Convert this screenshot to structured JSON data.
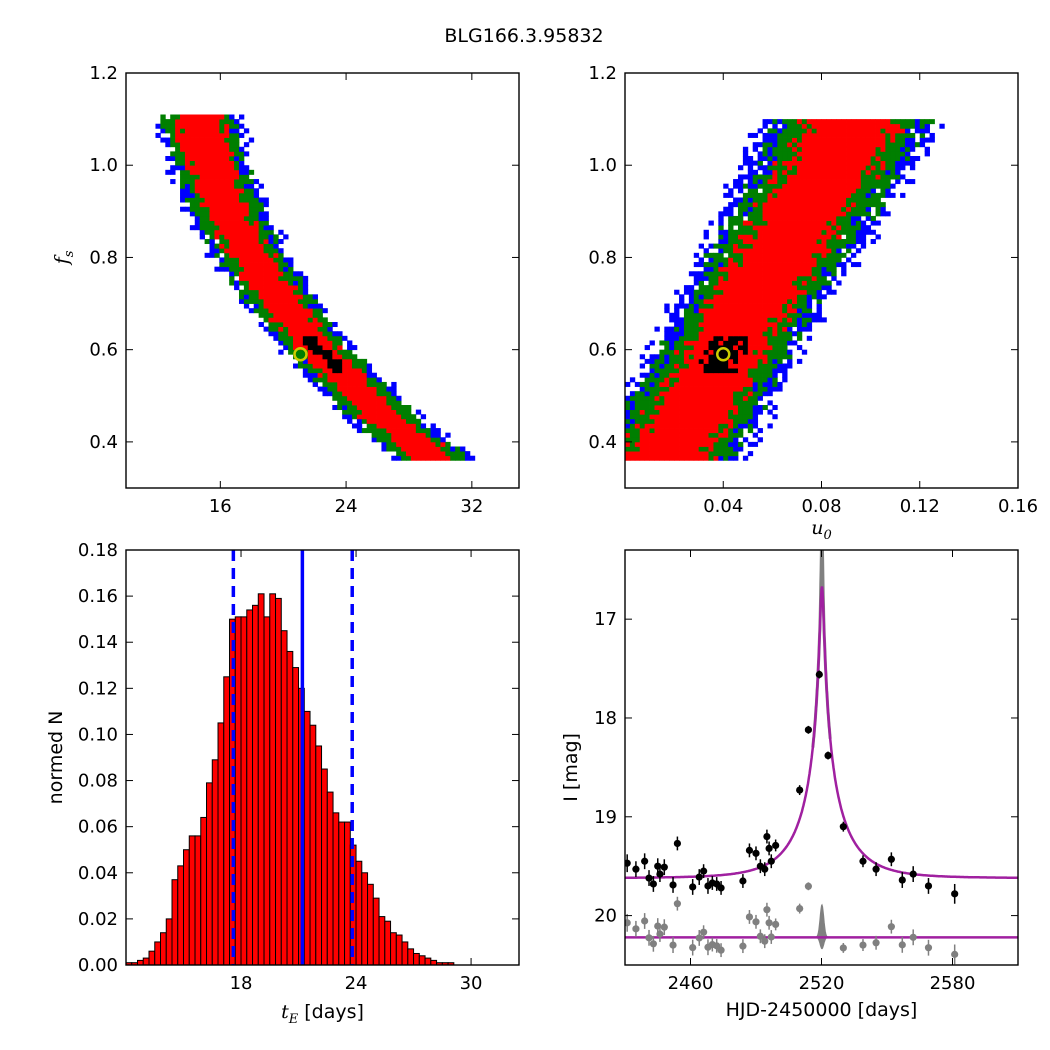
{
  "figure": {
    "title": "BLG166.3.95832"
  },
  "colors": {
    "blue": "#0000ff",
    "green": "#007f00",
    "red": "#ff0000",
    "black": "#000000",
    "best_fit_marker": "#cccc00",
    "hist_fill": "#ff0000",
    "model": "#a020a0",
    "residual": "#808080"
  },
  "chart_data": [
    {
      "type": "heatmap",
      "name": "tE-fs",
      "xlabel": "",
      "ylabel": "f_s",
      "ylabel_main": "f",
      "ylabel_sub": "s",
      "xlim": [
        10,
        35
      ],
      "ylim": [
        0.3,
        1.2
      ],
      "xticks": [
        16,
        24,
        32
      ],
      "xtick_labels": [
        "16",
        "24",
        "32"
      ],
      "yticks": [
        0.4,
        0.6,
        0.8,
        1.0,
        1.2
      ],
      "ytick_labels": [
        "0.4",
        "0.6",
        "0.8",
        "1.0",
        "1.2"
      ],
      "contour_levels": [
        "blue",
        "green",
        "red",
        "black"
      ],
      "best_fit": {
        "x": 21.1,
        "y": 0.59
      }
    },
    {
      "type": "heatmap",
      "name": "u0-fs",
      "xlabel": "u_0",
      "xlabel_main": "u",
      "xlabel_sub": "0",
      "ylabel": "",
      "xlim": [
        0,
        0.16
      ],
      "ylim": [
        0.3,
        1.2
      ],
      "xticks": [
        0.04,
        0.08,
        0.12,
        0.16
      ],
      "xtick_labels": [
        "0.04",
        "0.08",
        "0.12",
        "0.16"
      ],
      "yticks": [
        0.4,
        0.6,
        0.8,
        1.0,
        1.2
      ],
      "ytick_labels": [
        "0.4",
        "0.6",
        "0.8",
        "1.0",
        "1.2"
      ],
      "contour_levels": [
        "blue",
        "green",
        "red",
        "black"
      ],
      "best_fit": {
        "x": 0.04,
        "y": 0.59
      }
    },
    {
      "type": "bar",
      "name": "tE-histogram",
      "xlabel": "t_E  [days]",
      "xlabel_main": "t",
      "xlabel_sub": "E",
      "xlabel_unit": " [days]",
      "ylabel": "normed N",
      "xlim": [
        12,
        32.5
      ],
      "ylim": [
        0,
        0.18
      ],
      "xticks": [
        18,
        24,
        30
      ],
      "xtick_labels": [
        "18",
        "24",
        "30"
      ],
      "yticks": [
        0.0,
        0.02,
        0.04,
        0.06,
        0.08,
        0.1,
        0.12,
        0.14,
        0.16,
        0.18
      ],
      "ytick_labels": [
        "0.00",
        "0.02",
        "0.04",
        "0.06",
        "0.08",
        "0.10",
        "0.12",
        "0.14",
        "0.16",
        "0.18"
      ],
      "bin_start": 12.0,
      "bin_width": 0.3,
      "values": [
        0.001,
        0.001,
        0.002,
        0.003,
        0.006,
        0.01,
        0.014,
        0.02,
        0.037,
        0.043,
        0.05,
        0.056,
        0.056,
        0.064,
        0.079,
        0.089,
        0.105,
        0.125,
        0.15,
        0.151,
        0.151,
        0.154,
        0.156,
        0.161,
        0.151,
        0.161,
        0.159,
        0.145,
        0.136,
        0.129,
        0.12,
        0.11,
        0.104,
        0.095,
        0.085,
        0.075,
        0.066,
        0.062,
        0.062,
        0.052,
        0.045,
        0.04,
        0.035,
        0.029,
        0.021,
        0.019,
        0.014,
        0.013,
        0.01,
        0.007,
        0.005,
        0.004,
        0.003,
        0.002,
        0.001,
        0.001,
        0.001
      ],
      "vlines": [
        {
          "x": 17.6,
          "style": "dashed"
        },
        {
          "x": 21.2,
          "style": "solid"
        },
        {
          "x": 23.8,
          "style": "dashed"
        }
      ]
    },
    {
      "type": "scatter",
      "name": "light-curve",
      "xlabel": "HJD-2450000 [days]",
      "ylabel": "I [mag]",
      "xlim": [
        2430,
        2610
      ],
      "ylim": [
        20.5,
        16.3
      ],
      "xticks": [
        2460,
        2520,
        2580
      ],
      "xtick_labels": [
        "2460",
        "2520",
        "2580"
      ],
      "yticks": [
        17,
        18,
        19,
        20
      ],
      "ytick_labels": [
        "17",
        "18",
        "19",
        "20"
      ],
      "model": {
        "t0": 2520.2,
        "u0": 0.04,
        "tE": 21.2,
        "baseline": 19.62,
        "fs": 0.59
      },
      "data_points": [
        {
          "x": 2431,
          "y": 19.47,
          "e": 0.09
        },
        {
          "x": 2435,
          "y": 19.53,
          "e": 0.08
        },
        {
          "x": 2439,
          "y": 19.45,
          "e": 0.08
        },
        {
          "x": 2441,
          "y": 19.62,
          "e": 0.08
        },
        {
          "x": 2443,
          "y": 19.68,
          "e": 0.08
        },
        {
          "x": 2445,
          "y": 19.5,
          "e": 0.08
        },
        {
          "x": 2446,
          "y": 19.58,
          "e": 0.08
        },
        {
          "x": 2448,
          "y": 19.51,
          "e": 0.08
        },
        {
          "x": 2452,
          "y": 19.69,
          "e": 0.08
        },
        {
          "x": 2454,
          "y": 19.27,
          "e": 0.07
        },
        {
          "x": 2461,
          "y": 19.71,
          "e": 0.08
        },
        {
          "x": 2464,
          "y": 19.61,
          "e": 0.08
        },
        {
          "x": 2466,
          "y": 19.55,
          "e": 0.07
        },
        {
          "x": 2468,
          "y": 19.7,
          "e": 0.08
        },
        {
          "x": 2470,
          "y": 19.67,
          "e": 0.07
        },
        {
          "x": 2472,
          "y": 19.68,
          "e": 0.07
        },
        {
          "x": 2474,
          "y": 19.72,
          "e": 0.07
        },
        {
          "x": 2484,
          "y": 19.65,
          "e": 0.07
        },
        {
          "x": 2487,
          "y": 19.34,
          "e": 0.07
        },
        {
          "x": 2490,
          "y": 19.37,
          "e": 0.07
        },
        {
          "x": 2492,
          "y": 19.5,
          "e": 0.07
        },
        {
          "x": 2494,
          "y": 19.53,
          "e": 0.07
        },
        {
          "x": 2495,
          "y": 19.2,
          "e": 0.07
        },
        {
          "x": 2496,
          "y": 19.32,
          "e": 0.07
        },
        {
          "x": 2497,
          "y": 19.45,
          "e": 0.07
        },
        {
          "x": 2499,
          "y": 19.29,
          "e": 0.06
        },
        {
          "x": 2510,
          "y": 18.73,
          "e": 0.05
        },
        {
          "x": 2514,
          "y": 18.12,
          "e": 0.04
        },
        {
          "x": 2519,
          "y": 17.56,
          "e": 0.04
        },
        {
          "x": 2523,
          "y": 18.38,
          "e": 0.04
        },
        {
          "x": 2530,
          "y": 19.1,
          "e": 0.05
        },
        {
          "x": 2539,
          "y": 19.45,
          "e": 0.06
        },
        {
          "x": 2545,
          "y": 19.53,
          "e": 0.07
        },
        {
          "x": 2552,
          "y": 19.43,
          "e": 0.07
        },
        {
          "x": 2557,
          "y": 19.64,
          "e": 0.08
        },
        {
          "x": 2562,
          "y": 19.58,
          "e": 0.08
        },
        {
          "x": 2569,
          "y": 19.7,
          "e": 0.08
        },
        {
          "x": 2581,
          "y": 19.78,
          "e": 0.1
        }
      ]
    }
  ]
}
